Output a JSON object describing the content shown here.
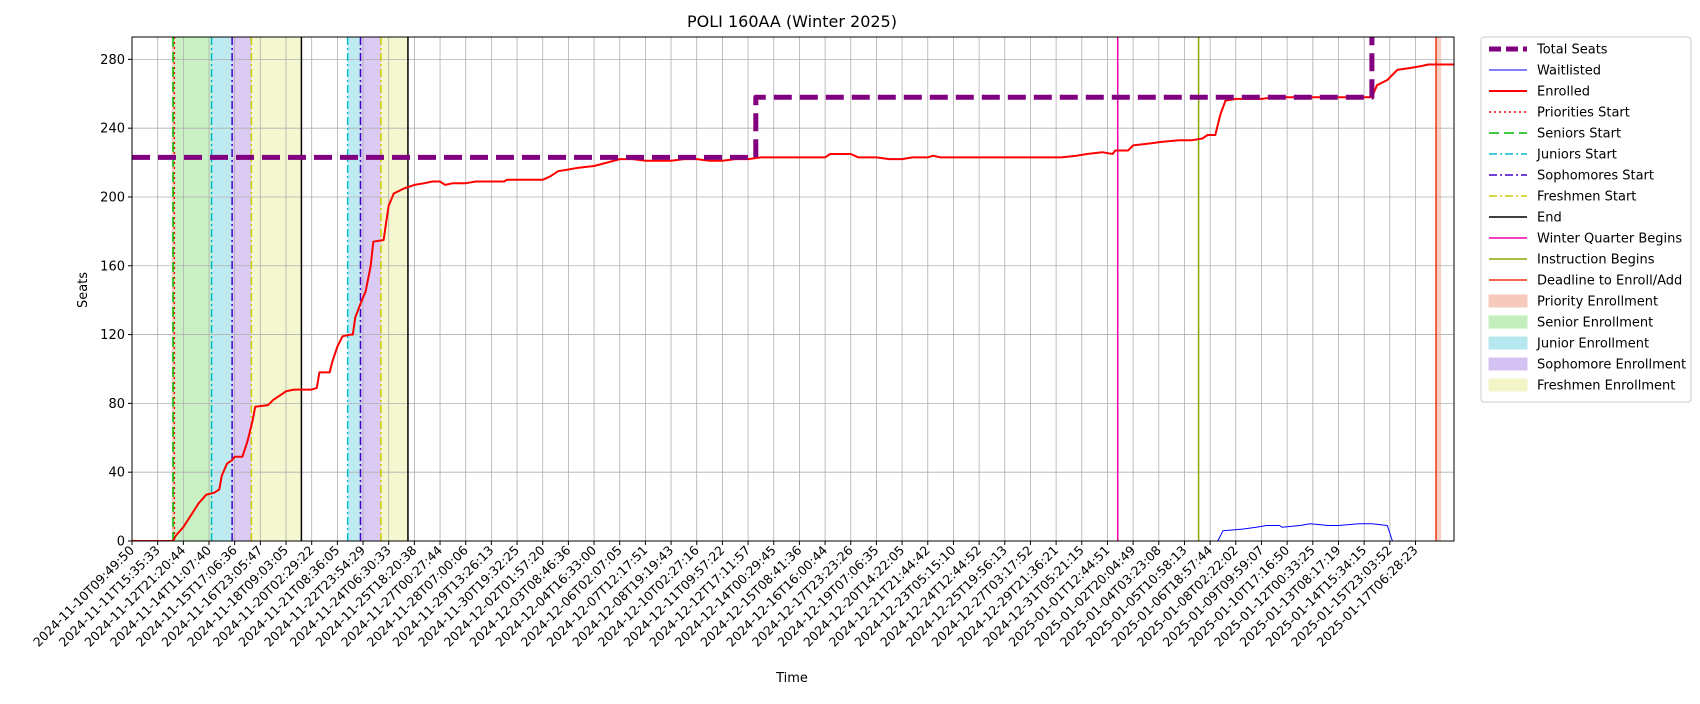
{
  "chart_data": {
    "type": "line",
    "title": "POLI 160AA (Winter 2025)",
    "xlabel": "Time",
    "ylabel": "Seats",
    "ylim": [
      0,
      293
    ],
    "yticks": [
      0,
      40,
      80,
      120,
      160,
      200,
      240,
      280
    ],
    "grid": true,
    "legend_position": "outside-right",
    "xticks": [
      "2024-11-10T09:49:50",
      "2024-11-11T15:35:33",
      "2024-11-12T21:20:44",
      "2024-11-14T11:07:40",
      "2024-11-15T17:06:36",
      "2024-11-16T23:05:47",
      "2024-11-18T09:03:05",
      "2024-11-20T02:29:22",
      "2024-11-21T08:36:05",
      "2024-11-22T23:54:29",
      "2024-11-24T06:30:33",
      "2024-11-25T18:20:38",
      "2024-11-27T00:27:44",
      "2024-11-28T07:00:06",
      "2024-11-29T13:26:13",
      "2024-11-30T19:32:25",
      "2024-12-02T01:57:20",
      "2024-12-03T08:46:36",
      "2024-12-04T16:33:00",
      "2024-12-06T02:07:05",
      "2024-12-07T12:17:51",
      "2024-12-08T19:19:43",
      "2024-12-10T02:27:16",
      "2024-12-11T09:57:22",
      "2024-12-12T17:11:57",
      "2024-12-14T00:29:45",
      "2024-12-15T08:41:36",
      "2024-12-16T16:00:44",
      "2024-12-17T23:23:26",
      "2024-12-19T07:06:35",
      "2024-12-20T14:22:05",
      "2024-12-21T21:44:42",
      "2024-12-23T05:15:10",
      "2024-12-24T12:44:52",
      "2024-12-25T19:56:13",
      "2024-12-27T03:17:52",
      "2024-12-29T21:36:21",
      "2024-12-31T05:21:15",
      "2025-01-01T12:44:51",
      "2025-01-02T20:04:49",
      "2025-01-04T03:23:08",
      "2025-01-05T10:58:13",
      "2025-01-06T18:57:44",
      "2025-01-08T02:22:02",
      "2025-01-09T09:59:07",
      "2025-01-10T17:16:50",
      "2025-01-12T00:33:25",
      "2025-01-13T08:17:19",
      "2025-01-14T15:34:15",
      "2025-01-15T23:03:52",
      "2025-01-17T06:28:23"
    ],
    "series": [
      {
        "name": "Total Seats",
        "color": "#800080",
        "dash": "dashed",
        "width": 5,
        "points": [
          [
            0,
            223
          ],
          [
            24.3,
            223
          ],
          [
            24.3,
            258
          ],
          [
            48.3,
            258
          ],
          [
            48.3,
            298
          ],
          [
            51.5,
            298
          ]
        ]
      },
      {
        "name": "Waitlisted",
        "color": "#0000ff",
        "dash": "solid",
        "width": 1,
        "points": [
          [
            0,
            0
          ],
          [
            42.3,
            0
          ],
          [
            42.5,
            6
          ],
          [
            43.3,
            7
          ],
          [
            43.8,
            8
          ],
          [
            44.2,
            9
          ],
          [
            44.7,
            9
          ],
          [
            44.8,
            8
          ],
          [
            45.5,
            9
          ],
          [
            45.9,
            10
          ],
          [
            46.6,
            9
          ],
          [
            47.0,
            9
          ],
          [
            47.8,
            10
          ],
          [
            48.3,
            10
          ],
          [
            48.9,
            9
          ],
          [
            49.1,
            0
          ],
          [
            51.5,
            0
          ]
        ]
      },
      {
        "name": "Enrolled",
        "color": "#ff0000",
        "dash": "solid",
        "width": 2,
        "points": [
          [
            0,
            0
          ],
          [
            1.6,
            0
          ],
          [
            1.7,
            3
          ],
          [
            2.0,
            8
          ],
          [
            2.3,
            15
          ],
          [
            2.6,
            22
          ],
          [
            2.9,
            27
          ],
          [
            3.2,
            28
          ],
          [
            3.4,
            30
          ],
          [
            3.5,
            38
          ],
          [
            3.7,
            45
          ],
          [
            3.9,
            47
          ],
          [
            4.0,
            49
          ],
          [
            4.3,
            49
          ],
          [
            4.5,
            58
          ],
          [
            4.7,
            70
          ],
          [
            4.8,
            78
          ],
          [
            5.3,
            79
          ],
          [
            5.5,
            82
          ],
          [
            5.8,
            85
          ],
          [
            6.0,
            87
          ],
          [
            6.3,
            88
          ],
          [
            6.6,
            88
          ],
          [
            6.8,
            88
          ],
          [
            7.0,
            88
          ],
          [
            7.2,
            89
          ],
          [
            7.3,
            98
          ],
          [
            7.7,
            98
          ],
          [
            7.8,
            104
          ],
          [
            8.0,
            113
          ],
          [
            8.2,
            119
          ],
          [
            8.5,
            120
          ],
          [
            8.6,
            120
          ],
          [
            8.7,
            130
          ],
          [
            8.9,
            138
          ],
          [
            9.1,
            145
          ],
          [
            9.3,
            160
          ],
          [
            9.4,
            174
          ],
          [
            9.8,
            175
          ],
          [
            9.9,
            185
          ],
          [
            10.0,
            195
          ],
          [
            10.2,
            202
          ],
          [
            10.6,
            205
          ],
          [
            11.0,
            207
          ],
          [
            11.4,
            208
          ],
          [
            11.7,
            209
          ],
          [
            12.0,
            209
          ],
          [
            12.2,
            207
          ],
          [
            12.5,
            208
          ],
          [
            13.0,
            208
          ],
          [
            13.4,
            209
          ],
          [
            14.0,
            209
          ],
          [
            14.5,
            209
          ],
          [
            14.6,
            210
          ],
          [
            16.0,
            210
          ],
          [
            16.3,
            212
          ],
          [
            16.6,
            215
          ],
          [
            17.0,
            216
          ],
          [
            17.4,
            217
          ],
          [
            18.0,
            218
          ],
          [
            18.5,
            220
          ],
          [
            19.0,
            222
          ],
          [
            19.5,
            222
          ],
          [
            20.0,
            221
          ],
          [
            21.0,
            221
          ],
          [
            21.5,
            222
          ],
          [
            22.0,
            222
          ],
          [
            22.5,
            221
          ],
          [
            23.0,
            221
          ],
          [
            23.5,
            222
          ],
          [
            24.0,
            222
          ],
          [
            24.5,
            223
          ],
          [
            25.5,
            223
          ],
          [
            26.0,
            223
          ],
          [
            27.0,
            223
          ],
          [
            27.2,
            225
          ],
          [
            28.0,
            225
          ],
          [
            28.3,
            223
          ],
          [
            29.0,
            223
          ],
          [
            29.5,
            222
          ],
          [
            30.0,
            222
          ],
          [
            30.4,
            223
          ],
          [
            31.0,
            223
          ],
          [
            31.2,
            224
          ],
          [
            31.5,
            223
          ],
          [
            32.0,
            223
          ],
          [
            33.0,
            223
          ],
          [
            35.0,
            223
          ],
          [
            36.2,
            223
          ],
          [
            36.8,
            224
          ],
          [
            37.2,
            225
          ],
          [
            37.8,
            226
          ],
          [
            38.2,
            225
          ],
          [
            38.3,
            227
          ],
          [
            38.8,
            227
          ],
          [
            39.0,
            230
          ],
          [
            39.6,
            231
          ],
          [
            40.1,
            232
          ],
          [
            40.8,
            233
          ],
          [
            41.3,
            233
          ],
          [
            41.7,
            234
          ],
          [
            41.9,
            236
          ],
          [
            42.2,
            236
          ],
          [
            42.4,
            248
          ],
          [
            42.6,
            256
          ],
          [
            43.0,
            257
          ],
          [
            43.6,
            257
          ],
          [
            44.0,
            257
          ],
          [
            44.5,
            258
          ],
          [
            45.0,
            258
          ],
          [
            46.0,
            258
          ],
          [
            47.0,
            258
          ],
          [
            48.0,
            258
          ],
          [
            48.3,
            258
          ],
          [
            48.5,
            265
          ],
          [
            48.9,
            268
          ],
          [
            49.3,
            274
          ],
          [
            49.8,
            275
          ],
          [
            50.2,
            276
          ],
          [
            50.5,
            277
          ],
          [
            51.0,
            277
          ],
          [
            51.5,
            277
          ]
        ]
      }
    ],
    "event_lines": [
      {
        "name": "Priorities Start",
        "x": 1.65,
        "color": "#ff0000",
        "dash": "dotted"
      },
      {
        "name": "Seniors Start",
        "x": 1.6,
        "color": "#00bb00",
        "dash": "dashed"
      },
      {
        "name": "Juniors Start",
        "x": 3.1,
        "color": "#00bbcc",
        "dash": "dashdot"
      },
      {
        "name": "Sophomores Start",
        "x": 3.9,
        "color": "#4400cc",
        "dash": "dashdot"
      },
      {
        "name": "Freshmen Start",
        "x": 4.65,
        "color": "#cccc00",
        "dash": "dashdot"
      },
      {
        "name": "End",
        "x": 6.6,
        "color": "#000000",
        "dash": "solid"
      },
      {
        "name": "Juniors Start",
        "x": 8.4,
        "color": "#00bbcc",
        "dash": "dashdot"
      },
      {
        "name": "Sophomores Start",
        "x": 8.9,
        "color": "#4400cc",
        "dash": "dashdot"
      },
      {
        "name": "Freshmen Start",
        "x": 9.7,
        "color": "#cccc00",
        "dash": "dashdot"
      },
      {
        "name": "End",
        "x": 10.75,
        "color": "#000000",
        "dash": "solid"
      },
      {
        "name": "Winter Quarter Begins",
        "x": 38.4,
        "color": "#ee00aa",
        "dash": "solid"
      },
      {
        "name": "Instruction Begins",
        "x": 41.55,
        "color": "#88aa00",
        "dash": "solid"
      },
      {
        "name": "Deadline to Enroll/Add",
        "x": 50.8,
        "color": "#ee3311",
        "dash": "solid"
      }
    ],
    "shaded_periods": [
      {
        "name": "Priority Enrollment",
        "x0": 1.55,
        "x1": 1.65,
        "color": "#f4c0b0"
      },
      {
        "name": "Senior Enrollment",
        "x0": 1.65,
        "x1": 3.1,
        "color": "#b8ecb0"
      },
      {
        "name": "Junior Enrollment",
        "x0": 3.1,
        "x1": 3.9,
        "color": "#a8e4ec"
      },
      {
        "name": "Sophomore Enrollment",
        "x0": 3.9,
        "x1": 4.65,
        "color": "#cdb8f0"
      },
      {
        "name": "Freshmen Enrollment",
        "x0": 4.65,
        "x1": 6.6,
        "color": "#f2f4c0"
      },
      {
        "name": "Junior Enrollment",
        "x0": 8.4,
        "x1": 8.9,
        "color": "#a8e4ec"
      },
      {
        "name": "Sophomore Enrollment",
        "x0": 8.9,
        "x1": 9.7,
        "color": "#cdb8f0"
      },
      {
        "name": "Freshmen Enrollment",
        "x0": 9.7,
        "x1": 10.75,
        "color": "#f2f4c0"
      },
      {
        "name": "Deadline to Enroll/Add",
        "x0": 50.8,
        "x1": 51.0,
        "color": "#f4c0b0"
      }
    ],
    "legend": [
      {
        "label": "Total Seats",
        "kind": "line",
        "color": "#800080",
        "dash": "dashed",
        "width": 5
      },
      {
        "label": "Waitlisted",
        "kind": "line",
        "color": "#0000ff",
        "dash": "solid",
        "width": 1
      },
      {
        "label": "Enrolled",
        "kind": "line",
        "color": "#ff0000",
        "dash": "solid",
        "width": 2
      },
      {
        "label": "Priorities Start",
        "kind": "line",
        "color": "#ff0000",
        "dash": "dotted",
        "width": 1.5
      },
      {
        "label": "Seniors Start",
        "kind": "line",
        "color": "#00bb00",
        "dash": "dashed",
        "width": 1.5
      },
      {
        "label": "Juniors Start",
        "kind": "line",
        "color": "#00bbcc",
        "dash": "dashdot",
        "width": 1.5
      },
      {
        "label": "Sophomores Start",
        "kind": "line",
        "color": "#4400cc",
        "dash": "dashdot",
        "width": 1.5
      },
      {
        "label": "Freshmen Start",
        "kind": "line",
        "color": "#cccc00",
        "dash": "dashdot",
        "width": 1.5
      },
      {
        "label": "End",
        "kind": "line",
        "color": "#000000",
        "dash": "solid",
        "width": 1.5
      },
      {
        "label": "Winter Quarter Begins",
        "kind": "line",
        "color": "#ee00aa",
        "dash": "solid",
        "width": 1.5
      },
      {
        "label": "Instruction Begins",
        "kind": "line",
        "color": "#88aa00",
        "dash": "solid",
        "width": 1.5
      },
      {
        "label": "Deadline to Enroll/Add",
        "kind": "line",
        "color": "#ee3311",
        "dash": "solid",
        "width": 1.5
      },
      {
        "label": "Priority Enrollment",
        "kind": "patch",
        "color": "#f4c0b0"
      },
      {
        "label": "Senior Enrollment",
        "kind": "patch",
        "color": "#b8ecb0"
      },
      {
        "label": "Junior Enrollment",
        "kind": "patch",
        "color": "#a8e4ec"
      },
      {
        "label": "Sophomore Enrollment",
        "kind": "patch",
        "color": "#cdb8f0"
      },
      {
        "label": "Freshmen Enrollment",
        "kind": "patch",
        "color": "#f2f4c0"
      }
    ]
  }
}
